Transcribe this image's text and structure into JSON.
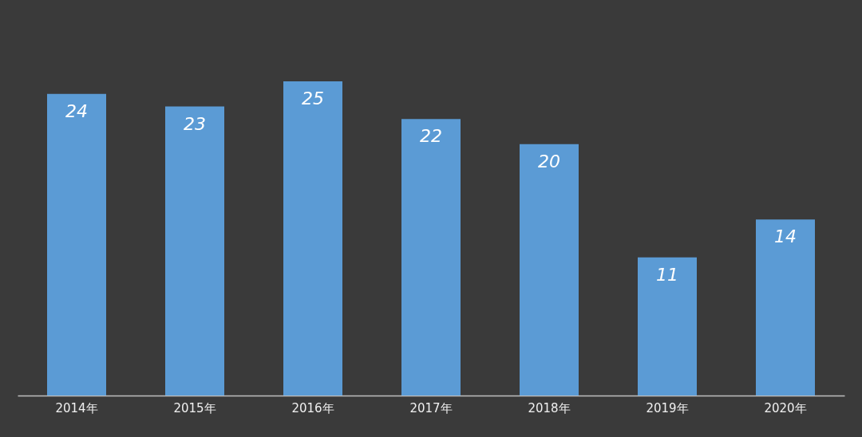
{
  "chart_data": {
    "type": "bar",
    "categories": [
      "2014年",
      "2015年",
      "2016年",
      "2017年",
      "2018年",
      "2019年",
      "2020年"
    ],
    "values": [
      24,
      23,
      25,
      22,
      20,
      11,
      14
    ],
    "color": "#5b9bd5",
    "data_labels": true,
    "grid": false
  }
}
